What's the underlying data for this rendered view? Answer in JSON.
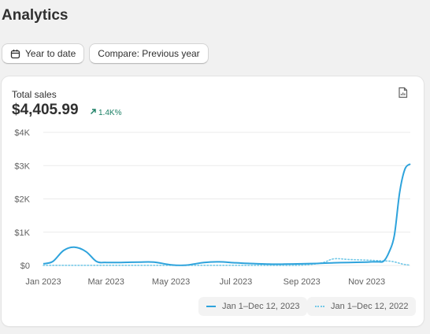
{
  "page": {
    "title": "Analytics"
  },
  "filters": {
    "date_range": "Year to date",
    "compare": "Compare: Previous year"
  },
  "card": {
    "metric_label": "Total sales",
    "metric_value": "$4,405.99",
    "delta": "1.4K%"
  },
  "colors": {
    "current": "#2ea3dc",
    "previous": "#74c9e8",
    "delta": "#1a7f64"
  },
  "legend": {
    "current": "Jan 1–Dec 12, 2023",
    "previous": "Jan 1–Dec 12, 2022"
  },
  "chart_data": {
    "type": "line",
    "y_ticks": [
      "$4K",
      "$3K",
      "$2K",
      "$1K",
      "$0"
    ],
    "x_ticks": [
      "Jan 2023",
      "Mar 2023",
      "May 2023",
      "Jul 2023",
      "Sep 2023",
      "Nov 2023"
    ],
    "ylim": [
      0,
      4000
    ],
    "grid": true,
    "series": [
      {
        "name": "Jan 1–Dec 12, 2023",
        "style": "solid",
        "x": [
          "2023-01-01",
          "2023-01-10",
          "2023-01-20",
          "2023-01-30",
          "2023-02-10",
          "2023-02-20",
          "2023-03-01",
          "2023-03-15",
          "2023-04-01",
          "2023-04-15",
          "2023-05-01",
          "2023-05-15",
          "2023-06-01",
          "2023-06-15",
          "2023-07-01",
          "2023-07-15",
          "2023-08-01",
          "2023-08-15",
          "2023-09-01",
          "2023-09-15",
          "2023-10-01",
          "2023-10-15",
          "2023-11-01",
          "2023-11-06",
          "2023-11-12",
          "2023-11-17",
          "2023-11-22",
          "2023-11-27",
          "2023-12-02",
          "2023-12-07",
          "2023-12-12"
        ],
        "values": [
          50,
          120,
          450,
          550,
          420,
          120,
          90,
          90,
          100,
          100,
          20,
          10,
          90,
          110,
          80,
          60,
          40,
          40,
          50,
          60,
          80,
          90,
          100,
          110,
          110,
          130,
          400,
          900,
          2200,
          2900,
          3050
        ]
      },
      {
        "name": "Jan 1–Dec 12, 2022",
        "style": "dotted",
        "x": [
          "2023-01-01",
          "2023-02-01",
          "2023-03-01",
          "2023-04-01",
          "2023-05-01",
          "2023-06-01",
          "2023-07-01",
          "2023-08-01",
          "2023-09-01",
          "2023-09-20",
          "2023-10-01",
          "2023-10-15",
          "2023-11-01",
          "2023-11-15",
          "2023-11-25",
          "2023-12-05",
          "2023-12-12"
        ],
        "values": [
          5,
          5,
          5,
          5,
          5,
          5,
          5,
          5,
          10,
          80,
          200,
          180,
          160,
          140,
          120,
          40,
          10
        ]
      }
    ]
  }
}
